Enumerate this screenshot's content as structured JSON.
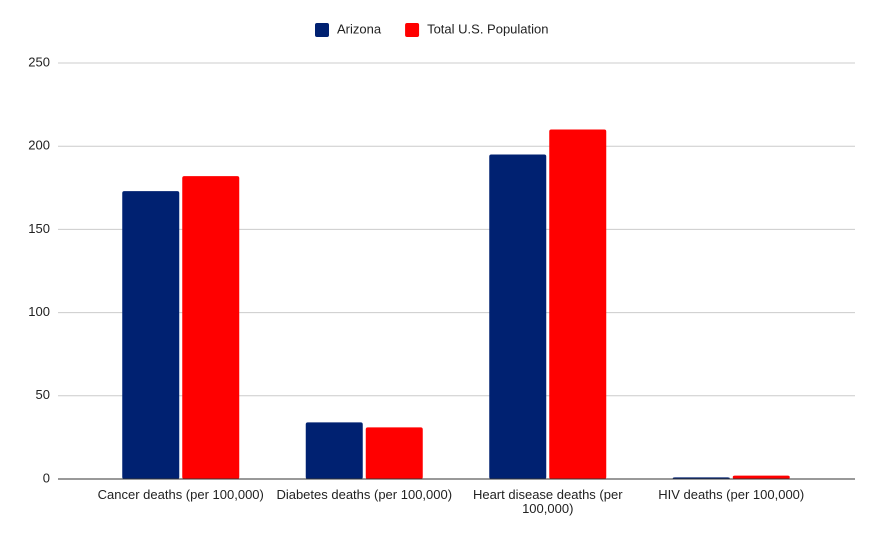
{
  "chart_data": {
    "type": "bar",
    "categories": [
      "Cancer deaths (per 100,000)",
      "Diabetes deaths (per 100,000)",
      "Heart disease deaths (per 100,000)",
      "HIV deaths (per 100,000)"
    ],
    "series": [
      {
        "name": "Arizona",
        "color": "#002171",
        "values": [
          173,
          34,
          195,
          1
        ]
      },
      {
        "name": "Total U.S. Population",
        "color": "#ff0000",
        "values": [
          182,
          31,
          210,
          2
        ]
      }
    ],
    "ylim": [
      0,
      250
    ],
    "yticks": [
      0,
      50,
      100,
      150,
      200,
      250
    ],
    "grid": true,
    "legend": "top"
  }
}
